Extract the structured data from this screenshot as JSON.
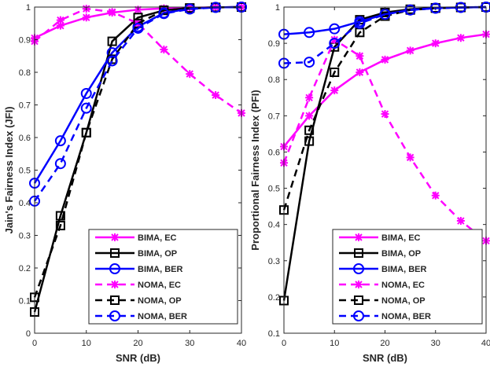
{
  "chart_data": [
    {
      "type": "line",
      "xlabel": "SNR (dB)",
      "ylabel": "Jain's Fairness Index (JFI)",
      "xlim": [
        0,
        40
      ],
      "ylim": [
        0,
        1
      ],
      "xticks": [
        0,
        10,
        20,
        30,
        40
      ],
      "yticks": [
        0,
        0.1,
        0.2,
        0.3,
        0.4,
        0.5,
        0.6,
        0.7,
        0.8,
        0.9,
        1
      ],
      "x": [
        0,
        5,
        10,
        15,
        20,
        25,
        30,
        35,
        40
      ],
      "legend_position": "bottom-right",
      "series": [
        {
          "name": "BIMA, EC",
          "color": "#ff00ff",
          "dash": "solid",
          "marker": "asterisk",
          "values": [
            0.905,
            0.943,
            0.968,
            0.983,
            0.992,
            0.996,
            0.998,
            0.999,
            1.0
          ]
        },
        {
          "name": "BIMA, OP",
          "color": "#000000",
          "dash": "solid",
          "marker": "square",
          "values": [
            0.065,
            0.36,
            0.615,
            0.895,
            0.968,
            0.99,
            0.997,
            0.999,
            1.0
          ]
        },
        {
          "name": "BIMA, BER",
          "color": "#0000ff",
          "dash": "solid",
          "marker": "circle",
          "values": [
            0.46,
            0.59,
            0.735,
            0.86,
            0.94,
            0.982,
            0.995,
            0.999,
            1.0
          ]
        },
        {
          "name": "NOMA, EC",
          "color": "#ff00ff",
          "dash": "dashed",
          "marker": "asterisk",
          "values": [
            0.895,
            0.96,
            0.995,
            0.985,
            0.95,
            0.87,
            0.795,
            0.73,
            0.675
          ]
        },
        {
          "name": "NOMA, OP",
          "color": "#000000",
          "dash": "dashed",
          "marker": "square",
          "values": [
            0.11,
            0.33,
            0.615,
            0.84,
            0.95,
            0.99,
            0.997,
            0.999,
            1.0
          ]
        },
        {
          "name": "NOMA, BER",
          "color": "#0000ff",
          "dash": "dashed",
          "marker": "circle",
          "values": [
            0.405,
            0.52,
            0.69,
            0.835,
            0.935,
            0.98,
            0.994,
            0.999,
            1.0
          ]
        }
      ]
    },
    {
      "type": "line",
      "xlabel": "SNR (dB)",
      "ylabel": "Proportional Fairness Index (PFI)",
      "xlim": [
        0,
        40
      ],
      "ylim": [
        0.1,
        1
      ],
      "xticks": [
        0,
        10,
        20,
        30,
        40
      ],
      "yticks": [
        0.1,
        0.2,
        0.3,
        0.4,
        0.5,
        0.6,
        0.7,
        0.8,
        0.9,
        1
      ],
      "x": [
        0,
        5,
        10,
        15,
        20,
        25,
        30,
        35,
        40
      ],
      "legend_position": "bottom-right",
      "series": [
        {
          "name": "BIMA, EC",
          "color": "#ff00ff",
          "dash": "solid",
          "marker": "asterisk",
          "values": [
            0.615,
            0.7,
            0.77,
            0.82,
            0.855,
            0.88,
            0.9,
            0.915,
            0.925
          ]
        },
        {
          "name": "BIMA, OP",
          "color": "#000000",
          "dash": "solid",
          "marker": "square",
          "values": [
            0.19,
            0.63,
            0.89,
            0.965,
            0.985,
            0.994,
            0.998,
            0.999,
            1.0
          ]
        },
        {
          "name": "BIMA, BER",
          "color": "#0000ff",
          "dash": "solid",
          "marker": "circle",
          "values": [
            0.925,
            0.93,
            0.94,
            0.96,
            0.98,
            0.992,
            0.997,
            0.999,
            1.0
          ]
        },
        {
          "name": "NOMA, EC",
          "color": "#ff00ff",
          "dash": "dashed",
          "marker": "asterisk",
          "values": [
            0.57,
            0.75,
            0.91,
            0.865,
            0.705,
            0.585,
            0.48,
            0.41,
            0.355
          ]
        },
        {
          "name": "NOMA, OP",
          "color": "#000000",
          "dash": "dashed",
          "marker": "square",
          "values": [
            0.44,
            0.66,
            0.82,
            0.93,
            0.975,
            0.992,
            0.997,
            0.999,
            1.0
          ]
        },
        {
          "name": "NOMA, BER",
          "color": "#0000ff",
          "dash": "dashed",
          "marker": "circle",
          "values": [
            0.845,
            0.848,
            0.9,
            0.955,
            0.98,
            0.992,
            0.997,
            0.999,
            1.0
          ]
        }
      ]
    }
  ]
}
